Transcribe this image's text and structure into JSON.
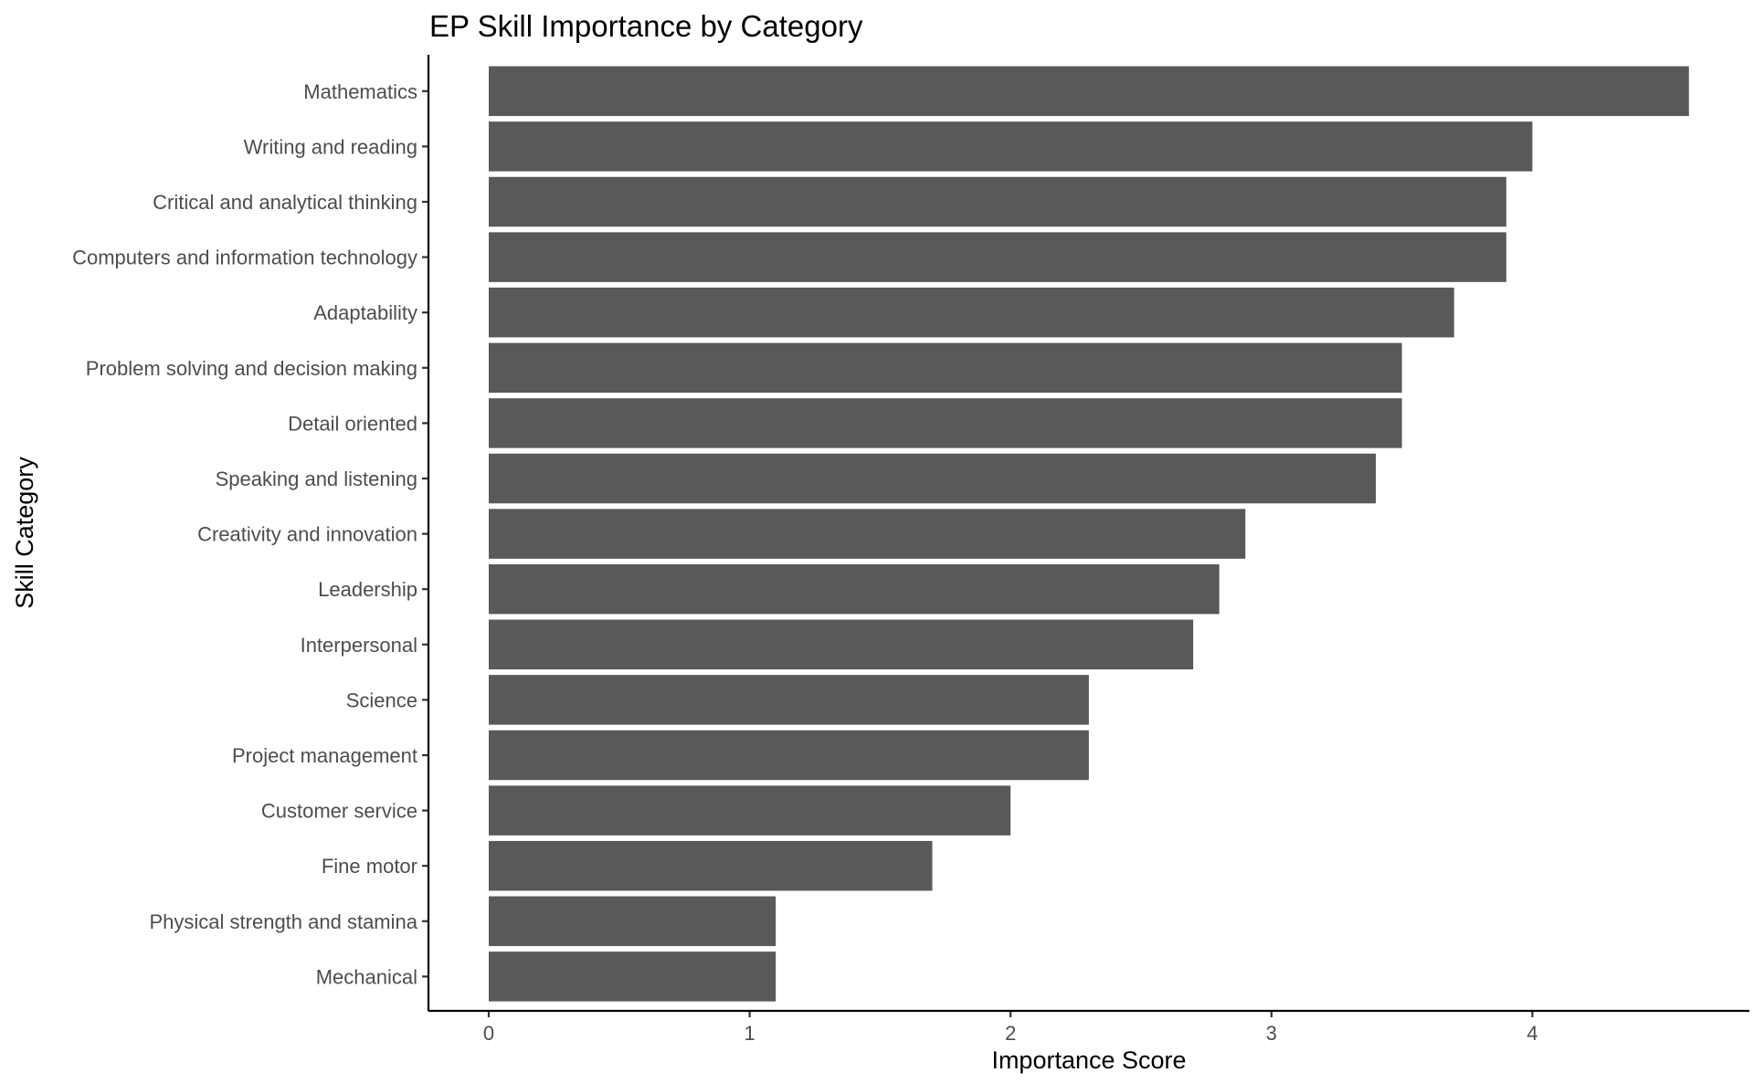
{
  "chart_data": {
    "type": "bar",
    "orientation": "horizontal",
    "title": "EP Skill Importance by Category",
    "xlabel": "Importance Score",
    "ylabel": "Skill Category",
    "xlim": [
      0,
      4.6
    ],
    "xticks": [
      0,
      1,
      2,
      3,
      4
    ],
    "grid": false,
    "bar_color": "#595959",
    "categories": [
      "Mathematics",
      "Writing and reading",
      "Critical and analytical thinking",
      "Computers and information technology",
      "Adaptability",
      "Problem solving and decision making",
      "Detail oriented",
      "Speaking and listening",
      "Creativity and innovation",
      "Leadership",
      "Interpersonal",
      "Science",
      "Project management",
      "Customer service",
      "Fine motor",
      "Physical strength and stamina",
      "Mechanical"
    ],
    "values": [
      4.6,
      4.0,
      3.9,
      3.9,
      3.7,
      3.5,
      3.5,
      3.4,
      2.9,
      2.8,
      2.7,
      2.3,
      2.3,
      2.0,
      1.7,
      1.1,
      1.1
    ]
  }
}
